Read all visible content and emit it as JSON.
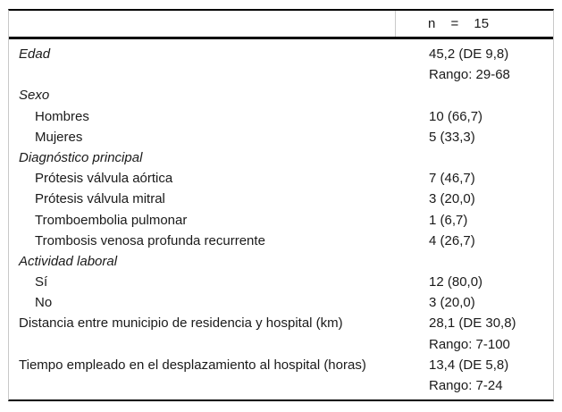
{
  "colors": {
    "rule_black": "#000000",
    "frame_gray": "#c9c9c9",
    "text": "#1a1a1a",
    "background": "#ffffff"
  },
  "table": {
    "header": {
      "label": "",
      "n_label": "n = 15"
    },
    "rows": [
      {
        "label": "Edad",
        "value": "45,2 (DE 9,8)"
      },
      {
        "label": "",
        "value": "Rango: 29-68"
      },
      {
        "label": "Sexo",
        "value": ""
      },
      {
        "label": "Hombres",
        "value": "10 (66,7)"
      },
      {
        "label": "Mujeres",
        "value": "5 (33,3)"
      },
      {
        "label": "Diagnóstico principal",
        "value": ""
      },
      {
        "label": "Prótesis válvula aórtica",
        "value": "7 (46,7)"
      },
      {
        "label": "Prótesis válvula mitral",
        "value": "3 (20,0)"
      },
      {
        "label": "Tromboembolia pulmonar",
        "value": "1 (6,7)"
      },
      {
        "label": "Trombosis venosa profunda recurrente",
        "value": "4 (26,7)"
      },
      {
        "label": "Actividad laboral",
        "value": ""
      },
      {
        "label": "Sí",
        "value": "12 (80,0)"
      },
      {
        "label": "No",
        "value": "3 (20,0)"
      },
      {
        "label": "Distancia entre municipio de residencia y hospital (km)",
        "value": "28,1 (DE 30,8)"
      },
      {
        "label": "",
        "value": "Rango: 7-100"
      },
      {
        "label": "Tiempo empleado en el desplazamiento al hospital (horas)",
        "value": "13,4 (DE 5,8)"
      },
      {
        "label": "",
        "value": "Rango: 7-24"
      }
    ]
  }
}
